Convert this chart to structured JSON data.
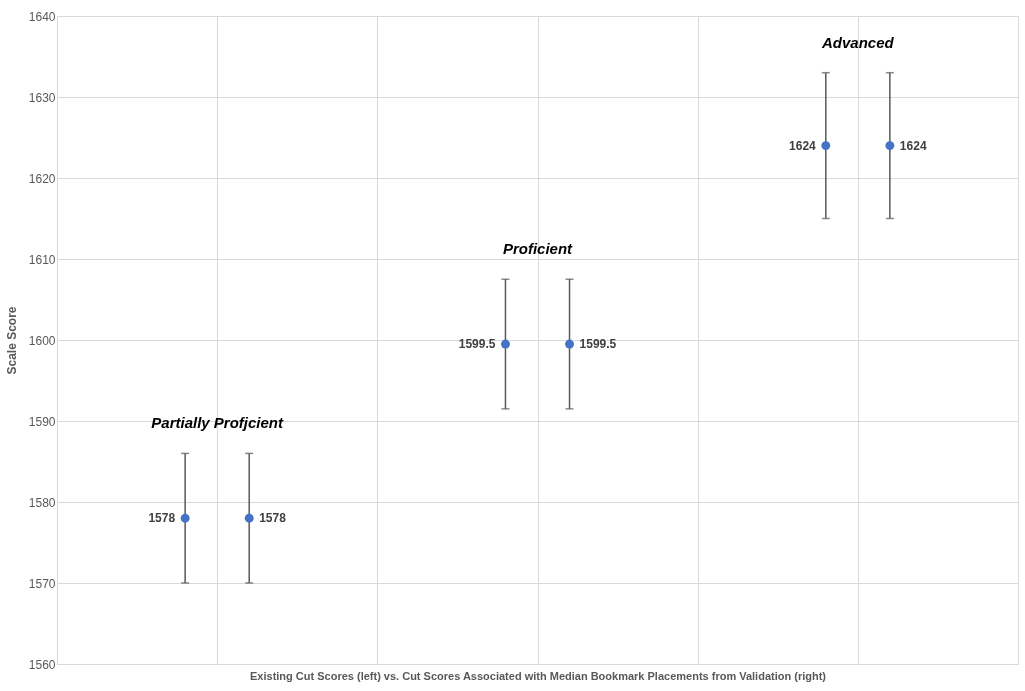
{
  "chart_data": {
    "type": "scatter",
    "xlabel": "Existing Cut Scores (left) vs. Cut Scores Associated with Median Bookmark Placements from Validation (right)",
    "ylabel": "Scale Score",
    "categories": [
      null,
      null,
      null
    ],
    "series": [
      {
        "color": "#4472c4",
        "values": [
          1578,
          1599.5,
          1624
        ],
        "errors": [
          8,
          8,
          9
        ]
      },
      {
        "color": "#4472c4",
        "values": [
          1578,
          1599.5,
          1624
        ],
        "errors": [
          8,
          8,
          9
        ]
      }
    ],
    "data_labels": true,
    "marker": "circle",
    "ylim": [
      1560,
      1640
    ],
    "yticks": [
      1560,
      1570,
      1580,
      1590,
      1600,
      1610,
      1620,
      1630,
      1640
    ],
    "grid": true,
    "tick_labels": "y",
    "annotations": [
      "Partially Profjcient",
      "Proficient",
      "Advanced"
    ]
  }
}
